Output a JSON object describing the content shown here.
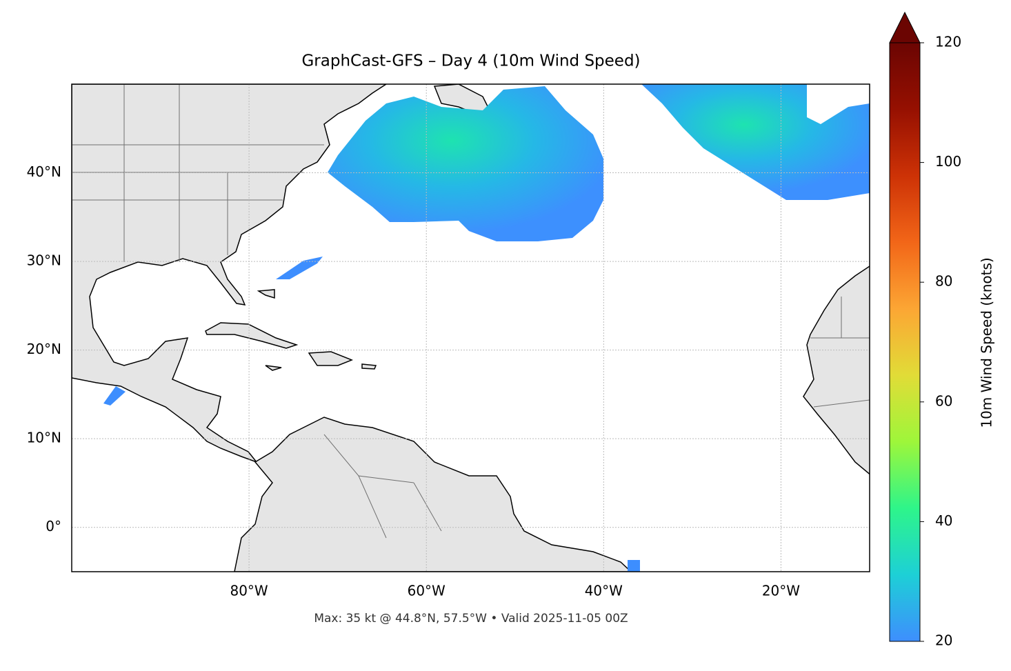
{
  "chart_data": {
    "type": "map",
    "title": "GraphCast-GFS – Day 4 (10m Wind Speed)",
    "annotation": "Max: 35 kt @ 44.8°N, 57.5°W • Valid 2025-11-05 00Z",
    "xlim": [
      -100,
      -10
    ],
    "ylim": [
      -5,
      50
    ],
    "xticks": [
      {
        "value": -80,
        "label": "80°W"
      },
      {
        "value": -60,
        "label": "60°W"
      },
      {
        "value": -40,
        "label": "40°W"
      },
      {
        "value": -20,
        "label": "20°W"
      }
    ],
    "yticks": [
      {
        "value": 0,
        "label": "0°"
      },
      {
        "value": 10,
        "label": "10°N"
      },
      {
        "value": 20,
        "label": "20°N"
      },
      {
        "value": 30,
        "label": "30°N"
      },
      {
        "value": 40,
        "label": "40°N"
      }
    ],
    "grid": true,
    "colorbar": {
      "label": "10m Wind Speed (knots)",
      "lim": [
        20,
        120
      ],
      "ticks": [
        20,
        40,
        60,
        80,
        100,
        120
      ],
      "colors": [
        "#3e8efe",
        "#1dd0d6",
        "#2ef58a",
        "#9ef63a",
        "#e1dc37",
        "#fca634",
        "#f26618",
        "#cd3206",
        "#961001",
        "#6b0502"
      ],
      "extend": "max"
    }
  }
}
